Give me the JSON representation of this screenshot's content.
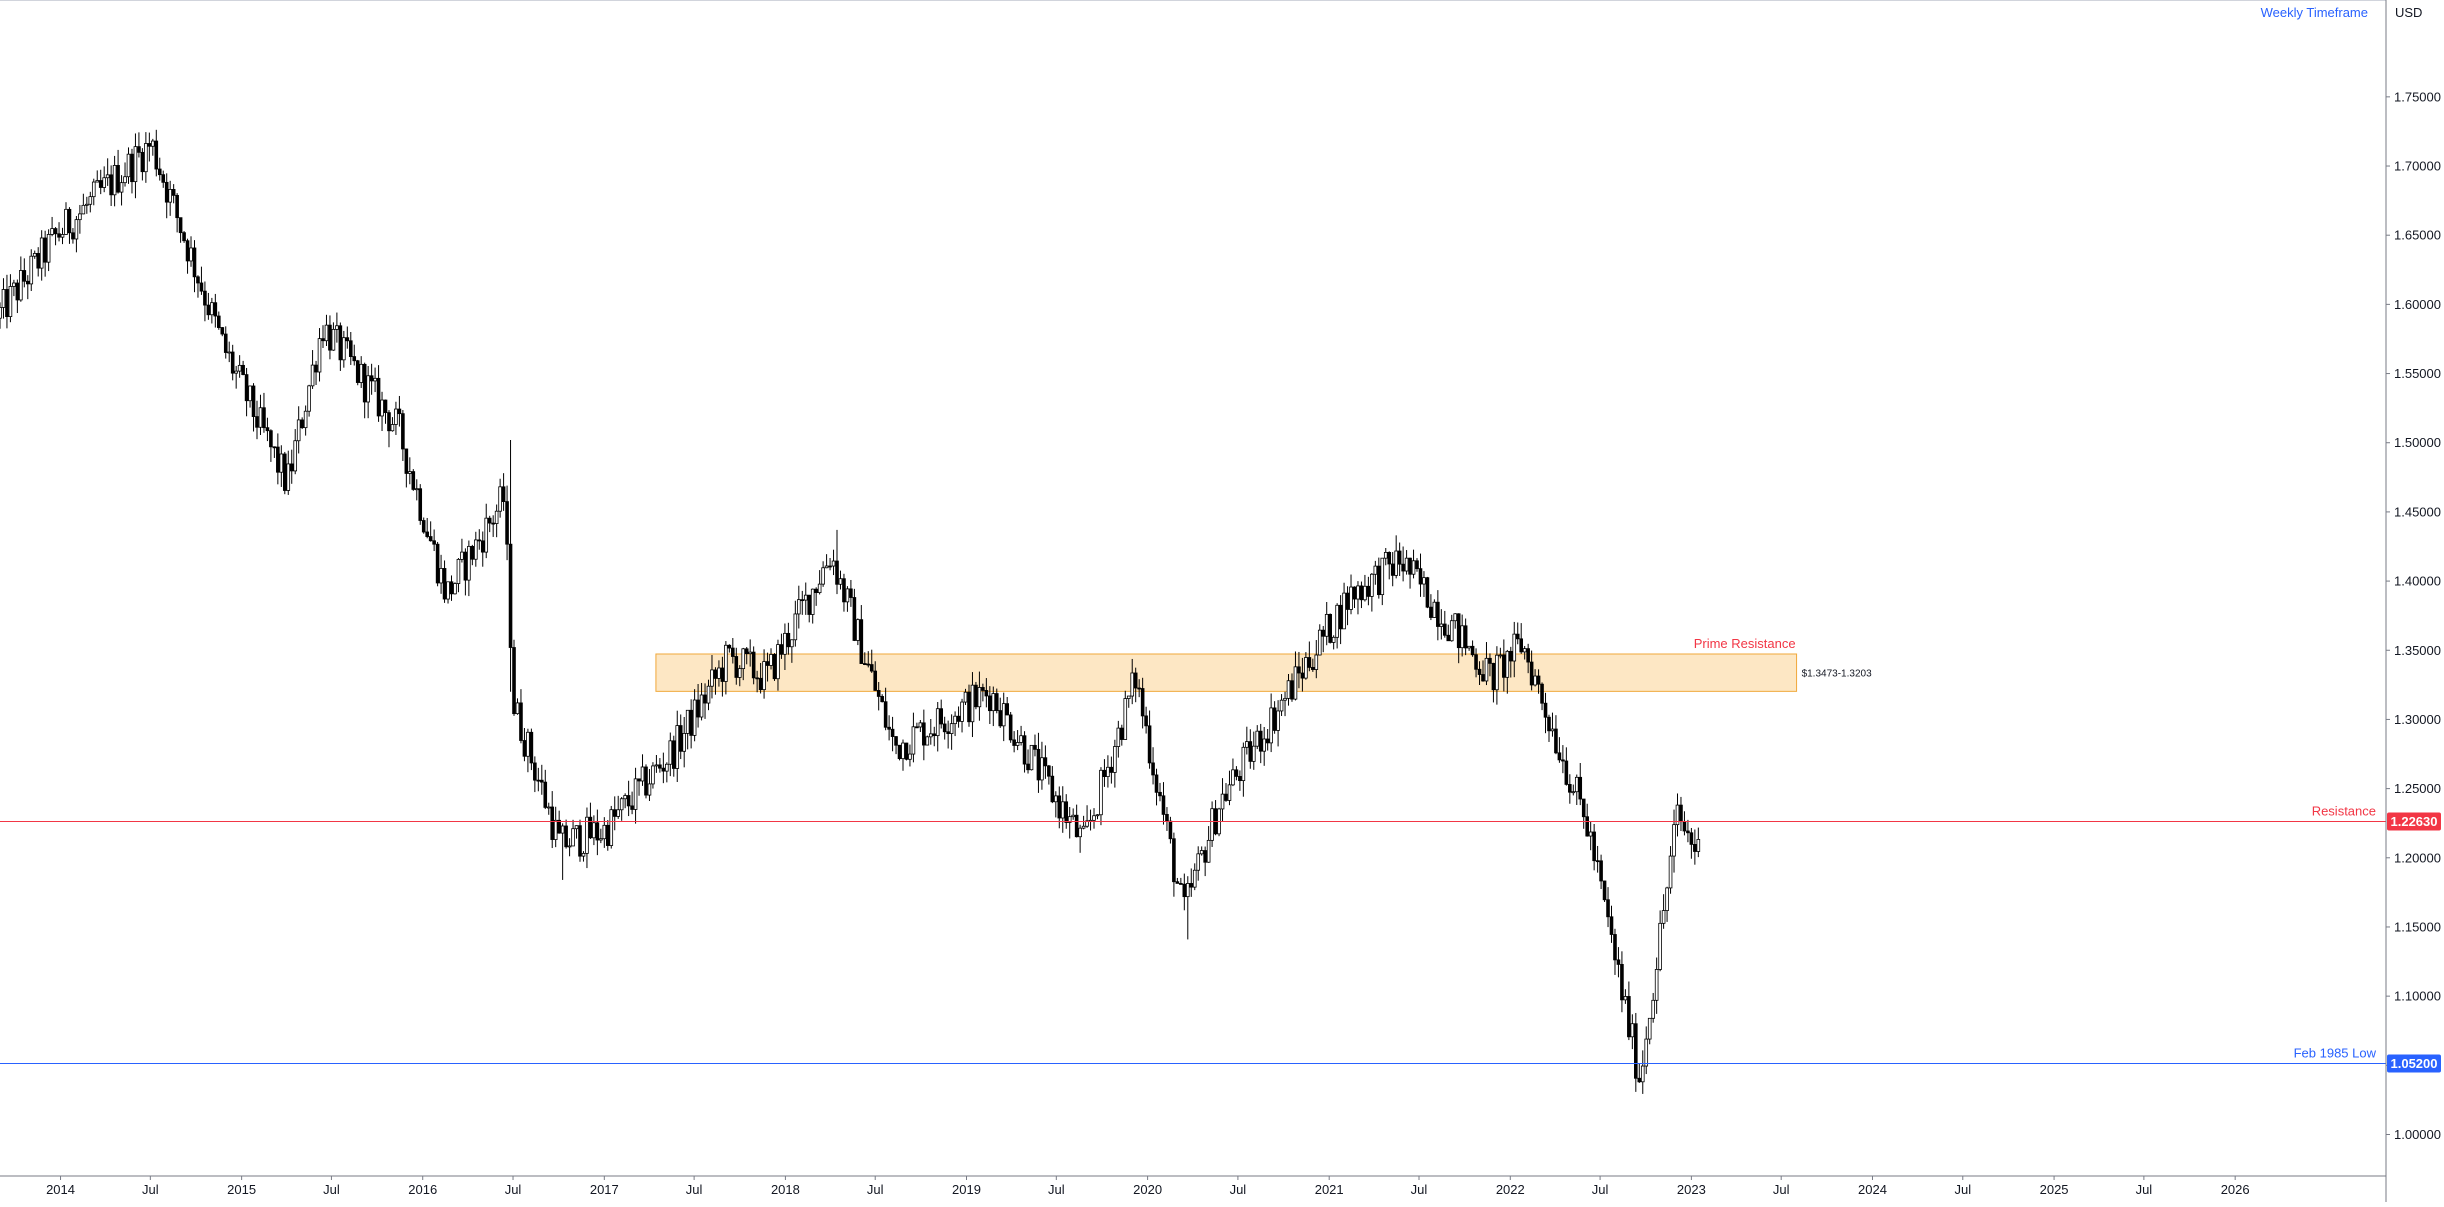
{
  "header": {
    "timeframe_label": "Weekly Timeframe",
    "currency_label": "USD"
  },
  "colors": {
    "background": "#ffffff",
    "candle": "#000000",
    "axis_line": "#787b86",
    "text": "#131722",
    "timeframe_text": "#2962ff",
    "zone_fill": "#fde7c4",
    "zone_border": "#f0a83a",
    "resistance": "#f23645",
    "support": "#2962ff"
  },
  "chart_data": {
    "type": "candlestick",
    "title": "",
    "xlabel": "",
    "ylabel": "USD",
    "x_range": [
      "2013-09-01",
      "2026-11-01"
    ],
    "y_range": [
      0.97,
      1.82
    ],
    "y_ticks": [
      "1.75000",
      "1.70000",
      "1.65000",
      "1.60000",
      "1.55000",
      "1.50000",
      "1.45000",
      "1.40000",
      "1.35000",
      "1.30000",
      "1.25000",
      "1.20000",
      "1.15000",
      "1.10000",
      "1.05000",
      "1.00000"
    ],
    "x_ticks": [
      {
        "label": "2014",
        "date": "2014-01-01"
      },
      {
        "label": "Jul",
        "date": "2014-07-01"
      },
      {
        "label": "2015",
        "date": "2015-01-01"
      },
      {
        "label": "Jul",
        "date": "2015-07-01"
      },
      {
        "label": "2016",
        "date": "2016-01-01"
      },
      {
        "label": "Jul",
        "date": "2016-07-01"
      },
      {
        "label": "2017",
        "date": "2017-01-01"
      },
      {
        "label": "Jul",
        "date": "2017-07-01"
      },
      {
        "label": "2018",
        "date": "2018-01-01"
      },
      {
        "label": "Jul",
        "date": "2018-07-01"
      },
      {
        "label": "2019",
        "date": "2019-01-01"
      },
      {
        "label": "Jul",
        "date": "2019-07-01"
      },
      {
        "label": "2020",
        "date": "2020-01-01"
      },
      {
        "label": "Jul",
        "date": "2020-07-01"
      },
      {
        "label": "2021",
        "date": "2021-01-01"
      },
      {
        "label": "Jul",
        "date": "2021-07-01"
      },
      {
        "label": "2022",
        "date": "2022-01-01"
      },
      {
        "label": "Jul",
        "date": "2022-07-01"
      },
      {
        "label": "2023",
        "date": "2023-01-01"
      },
      {
        "label": "Jul",
        "date": "2023-07-01"
      },
      {
        "label": "2024",
        "date": "2024-01-01"
      },
      {
        "label": "Jul",
        "date": "2024-07-01"
      },
      {
        "label": "2025",
        "date": "2025-01-01"
      },
      {
        "label": "Jul",
        "date": "2025-07-01"
      },
      {
        "label": "2026",
        "date": "2026-01-01"
      }
    ],
    "price_path": [
      {
        "date": "2013-09-01",
        "price": 1.59
      },
      {
        "date": "2014-01-01",
        "price": 1.65
      },
      {
        "date": "2014-07-10",
        "price": 1.716
      },
      {
        "date": "2014-12-01",
        "price": 1.57
      },
      {
        "date": "2015-04-10",
        "price": 1.47
      },
      {
        "date": "2015-06-20",
        "price": 1.585
      },
      {
        "date": "2015-11-20",
        "price": 1.51
      },
      {
        "date": "2016-02-25",
        "price": 1.39
      },
      {
        "date": "2016-06-20",
        "price": 1.46
      },
      {
        "date": "2016-07-10",
        "price": 1.31
      },
      {
        "date": "2016-10-10",
        "price": 1.21
      },
      {
        "date": "2017-01-10",
        "price": 1.22
      },
      {
        "date": "2017-06-01",
        "price": 1.28
      },
      {
        "date": "2017-09-15",
        "price": 1.345
      },
      {
        "date": "2017-12-01",
        "price": 1.33
      },
      {
        "date": "2018-04-10",
        "price": 1.42
      },
      {
        "date": "2018-08-15",
        "price": 1.28
      },
      {
        "date": "2019-02-25",
        "price": 1.32
      },
      {
        "date": "2019-09-01",
        "price": 1.21
      },
      {
        "date": "2019-12-15",
        "price": 1.33
      },
      {
        "date": "2020-03-20",
        "price": 1.16
      },
      {
        "date": "2020-06-01",
        "price": 1.24
      },
      {
        "date": "2020-12-01",
        "price": 1.345
      },
      {
        "date": "2021-02-20",
        "price": 1.39
      },
      {
        "date": "2021-06-01",
        "price": 1.415
      },
      {
        "date": "2021-12-01",
        "price": 1.33
      },
      {
        "date": "2022-02-01",
        "price": 1.355
      },
      {
        "date": "2022-06-15",
        "price": 1.22
      },
      {
        "date": "2022-09-26",
        "price": 1.04
      },
      {
        "date": "2022-12-10",
        "price": 1.23
      },
      {
        "date": "2023-01-20",
        "price": 1.205
      }
    ],
    "extreme_points": [
      {
        "date": "2014-07-10",
        "high": 1.717
      },
      {
        "date": "2016-06-24",
        "high": 1.502,
        "low": 1.32
      },
      {
        "date": "2016-10-07",
        "low": 1.184
      },
      {
        "date": "2018-04-13",
        "high": 1.437
      },
      {
        "date": "2020-03-20",
        "low": 1.141
      },
      {
        "date": "2021-06-01",
        "high": 1.425
      },
      {
        "date": "2022-09-26",
        "low": 1.035
      },
      {
        "date": "2022-12-12",
        "high": 1.244
      }
    ],
    "zones": [
      {
        "label": "Prime Resistance",
        "range_label": "$1.3473-1.3203",
        "top": 1.3473,
        "bottom": 1.3203,
        "start": "2017-04-15",
        "end": "2023-08-01"
      }
    ],
    "lines": [
      {
        "label": "Resistance",
        "value": 1.2263,
        "tag": "1.22630",
        "color": "#f23645"
      },
      {
        "label": "Feb 1985 Low",
        "value": 1.052,
        "tag": "1.05200",
        "color": "#2962ff"
      }
    ]
  }
}
